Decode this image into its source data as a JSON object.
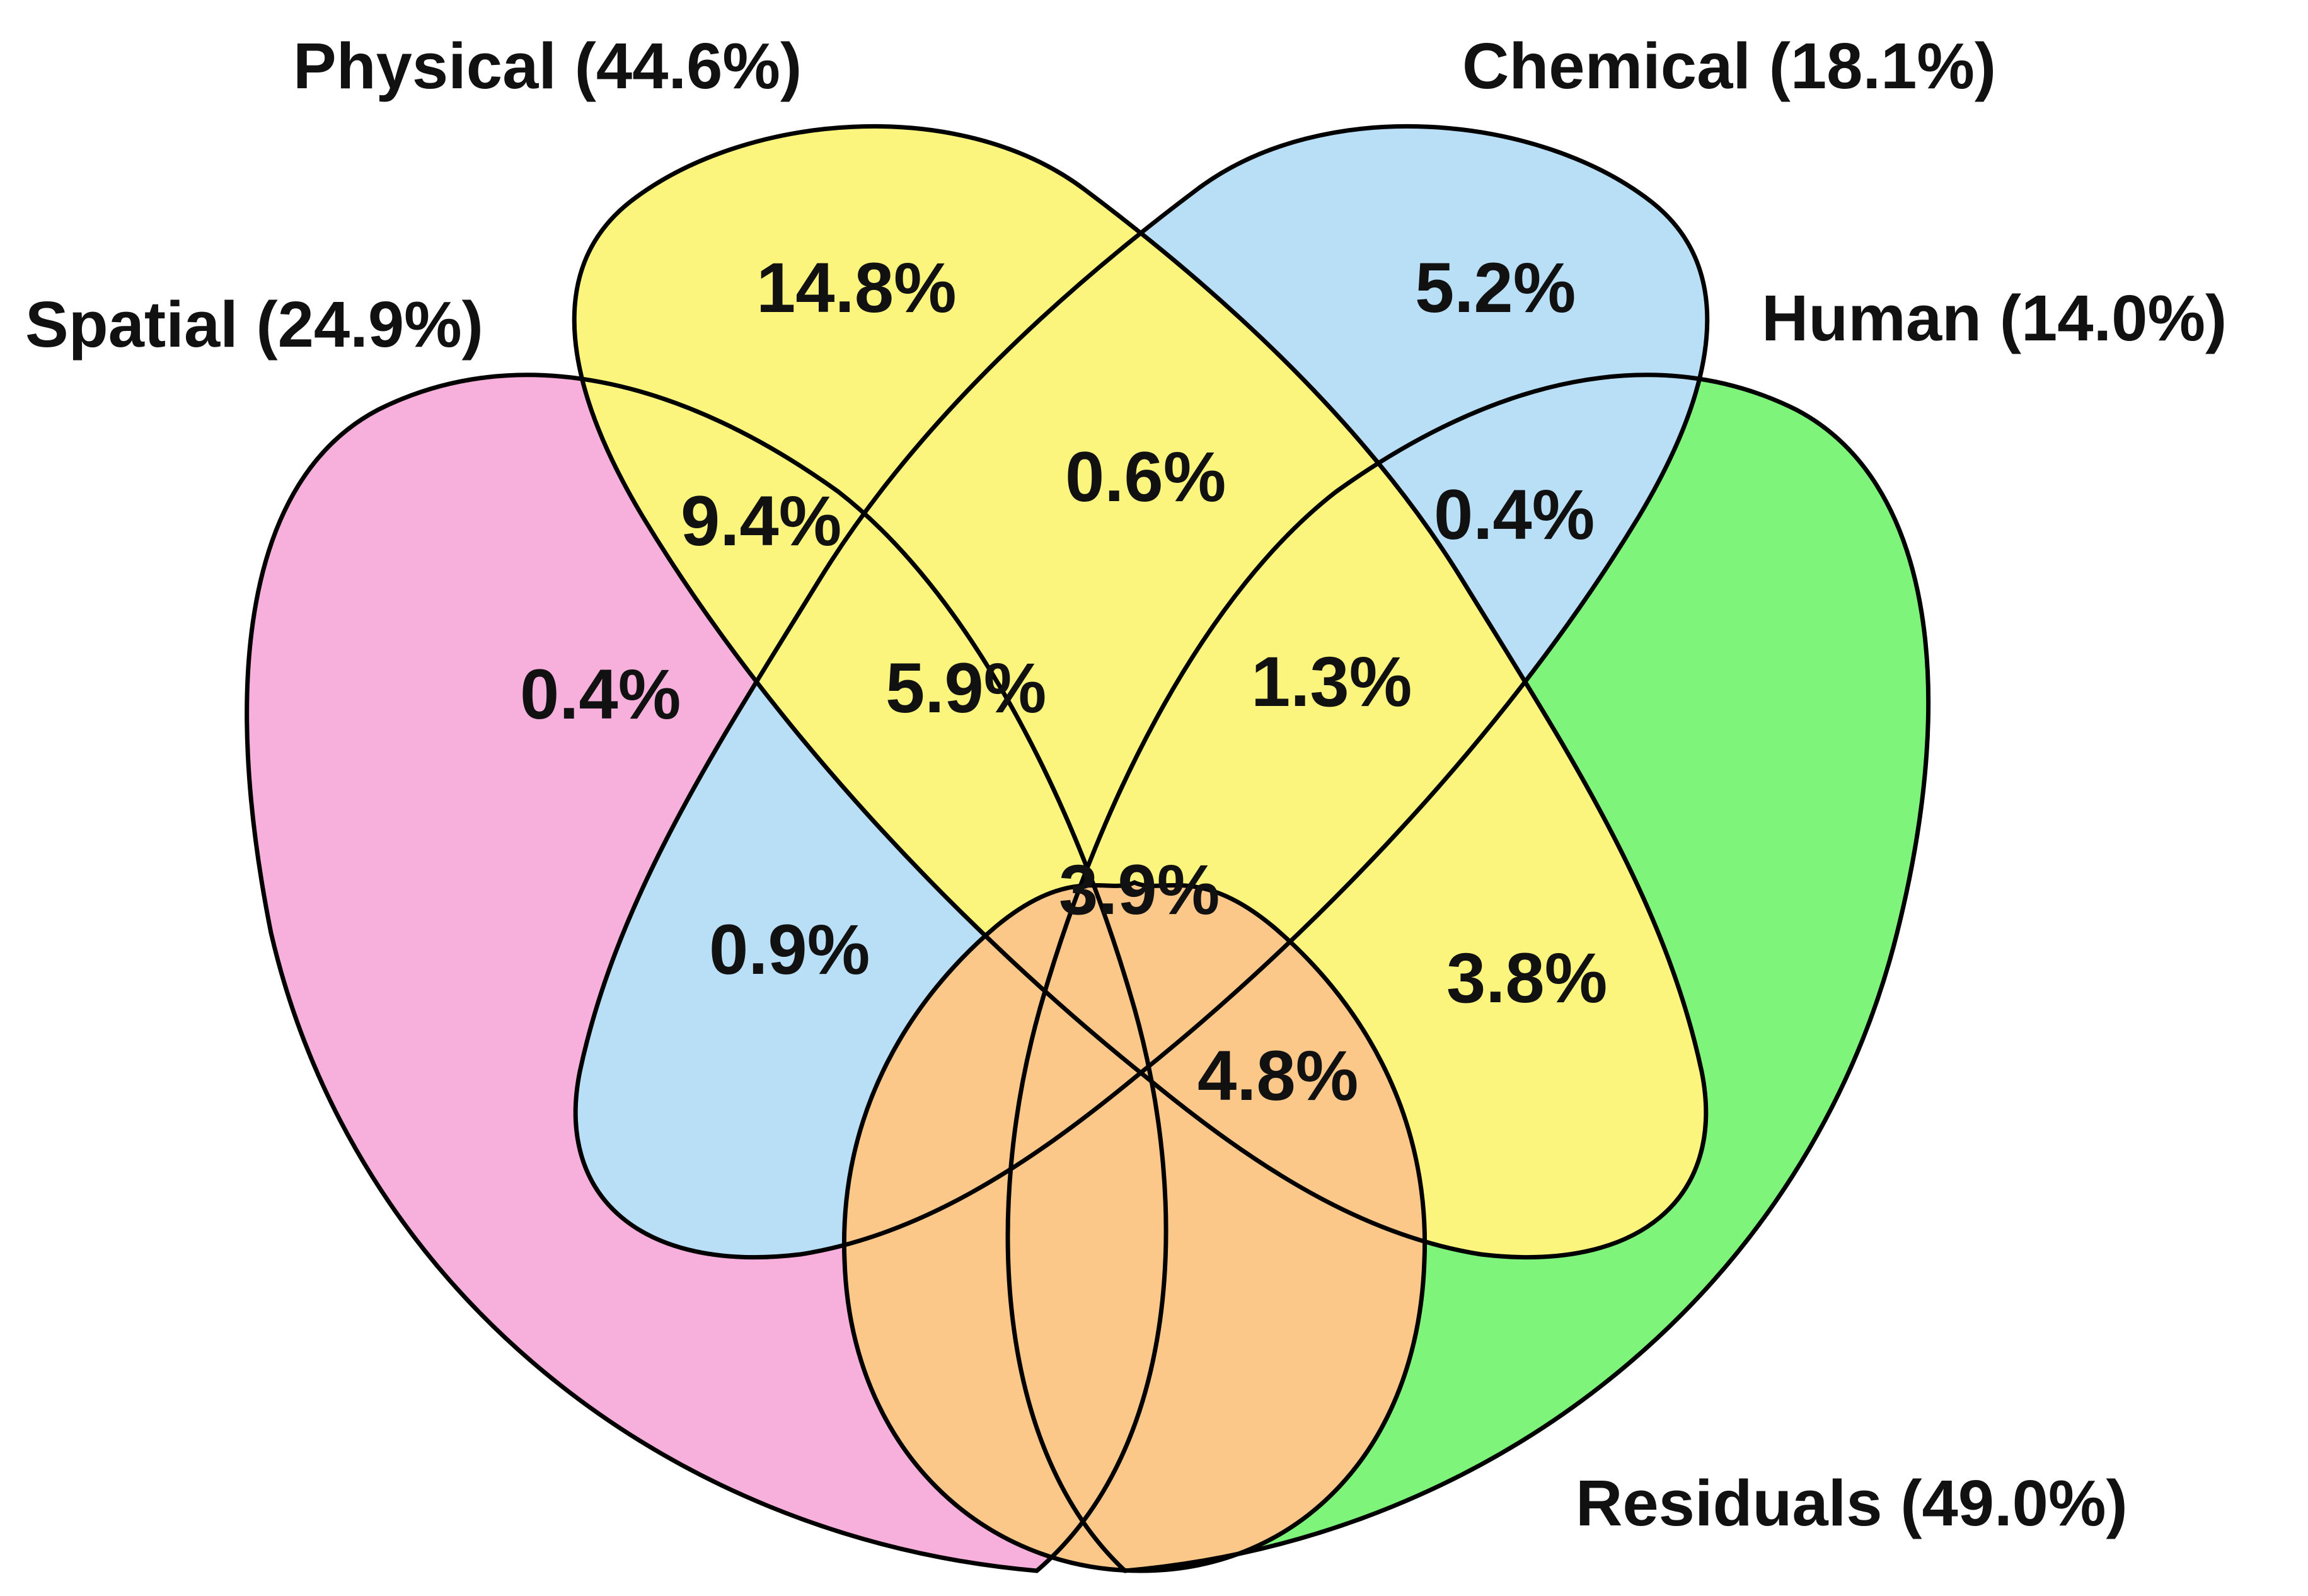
{
  "chart_data": {
    "type": "venn",
    "title": "",
    "sets": [
      {
        "id": "spatial",
        "label": "Spatial (24.9%)",
        "color": "#f7b0dc"
      },
      {
        "id": "physical",
        "label": "Physical (44.6%)",
        "color": "#b9dff6"
      },
      {
        "id": "chemical",
        "label": "Chemical (18.1%)",
        "color": "#fbf57e"
      },
      {
        "id": "residuals",
        "label": "Residuals (49.0%)",
        "color": "#7ff47a"
      },
      {
        "id": "human",
        "label": "Human (14.0%)",
        "color": "#fbc889"
      }
    ],
    "regions": [
      {
        "sets": [
          "physical"
        ],
        "value": "14.8%"
      },
      {
        "sets": [
          "chemical"
        ],
        "value": "5.2%"
      },
      {
        "sets": [
          "spatial",
          "physical"
        ],
        "value": "9.4%"
      },
      {
        "sets": [
          "physical",
          "chemical"
        ],
        "value": "0.6%"
      },
      {
        "sets": [
          "chemical",
          "residuals"
        ],
        "value": "0.4%"
      },
      {
        "sets": [
          "spatial"
        ],
        "value": "0.4%"
      },
      {
        "sets": [
          "spatial",
          "physical",
          "chemical"
        ],
        "value": "5.9%"
      },
      {
        "sets": [
          "physical",
          "chemical",
          "residuals"
        ],
        "value": "1.3%"
      },
      {
        "sets": [
          "spatial",
          "human"
        ],
        "value": "0.9%"
      },
      {
        "sets": [
          "spatial",
          "physical",
          "chemical",
          "human",
          "residuals"
        ],
        "value": "3.9%"
      },
      {
        "sets": [
          "physical",
          "residuals"
        ],
        "value": "3.8%"
      },
      {
        "sets": [
          "physical",
          "human",
          "residuals"
        ],
        "value": "4.8%"
      }
    ]
  }
}
